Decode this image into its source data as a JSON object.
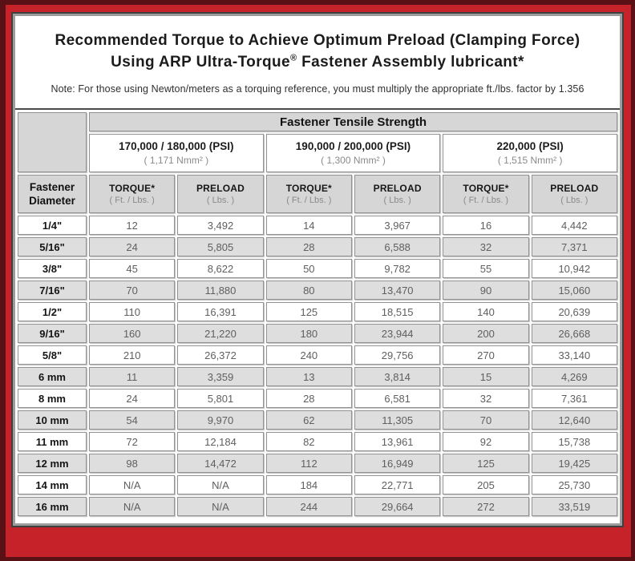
{
  "header": {
    "title_line1": "Recommended Torque to Achieve Optimum Preload (Clamping Force)",
    "title_line2_pre": "Using ARP Ultra-Torque",
    "title_line2_reg": "®",
    "title_line2_post": " Fastener Assembly lubricant*",
    "note": "Note: For those using Newton/meters as a torquing reference, you must multiply the appropriate ft./lbs. factor by 1.356"
  },
  "table": {
    "group_header": "Fastener Tensile Strength",
    "diameter_header": "Fastener Diameter",
    "strength_columns": [
      {
        "psi": "170,000 / 180,000 (PSI)",
        "nmm2": "( 1,171 Nmm² )"
      },
      {
        "psi": "190,000 / 200,000 (PSI)",
        "nmm2": "( 1,300 Nmm² )"
      },
      {
        "psi": "220,000 (PSI)",
        "nmm2": "( 1,515 Nmm² )"
      }
    ],
    "subheaders": {
      "torque_label": "TORQUE*",
      "torque_unit": "( Ft. / Lbs. )",
      "preload_label": "PRELOAD",
      "preload_unit": "( Lbs. )"
    },
    "rows": [
      {
        "diameter": "1/4\"",
        "values": [
          "12",
          "3,492",
          "14",
          "3,967",
          "16",
          "4,442"
        ]
      },
      {
        "diameter": "5/16\"",
        "values": [
          "24",
          "5,805",
          "28",
          "6,588",
          "32",
          "7,371"
        ]
      },
      {
        "diameter": "3/8\"",
        "values": [
          "45",
          "8,622",
          "50",
          "9,782",
          "55",
          "10,942"
        ]
      },
      {
        "diameter": "7/16\"",
        "values": [
          "70",
          "11,880",
          "80",
          "13,470",
          "90",
          "15,060"
        ]
      },
      {
        "diameter": "1/2\"",
        "values": [
          "110",
          "16,391",
          "125",
          "18,515",
          "140",
          "20,639"
        ]
      },
      {
        "diameter": "9/16\"",
        "values": [
          "160",
          "21,220",
          "180",
          "23,944",
          "200",
          "26,668"
        ]
      },
      {
        "diameter": "5/8\"",
        "values": [
          "210",
          "26,372",
          "240",
          "29,756",
          "270",
          "33,140"
        ]
      },
      {
        "diameter": "6 mm",
        "values": [
          "11",
          "3,359",
          "13",
          "3,814",
          "15",
          "4,269"
        ]
      },
      {
        "diameter": "8 mm",
        "values": [
          "24",
          "5,801",
          "28",
          "6,581",
          "32",
          "7,361"
        ]
      },
      {
        "diameter": "10 mm",
        "values": [
          "54",
          "9,970",
          "62",
          "11,305",
          "70",
          "12,640"
        ]
      },
      {
        "diameter": "11 mm",
        "values": [
          "72",
          "12,184",
          "82",
          "13,961",
          "92",
          "15,738"
        ]
      },
      {
        "diameter": "12 mm",
        "values": [
          "98",
          "14,472",
          "112",
          "16,949",
          "125",
          "19,425"
        ]
      },
      {
        "diameter": "14 mm",
        "values": [
          "N/A",
          "N/A",
          "184",
          "22,771",
          "205",
          "25,730"
        ]
      },
      {
        "diameter": "16 mm",
        "values": [
          "N/A",
          "N/A",
          "244",
          "29,664",
          "272",
          "33,519"
        ]
      }
    ]
  },
  "colors": {
    "frame_red": "#c52329",
    "frame_dark_edge": "#5a1115",
    "panel_border_dark": "#3f3f3f",
    "panel_border_gray": "#9c9c9c",
    "cell_border_gray": "#919191",
    "header_cell_gray": "#d6d6d6",
    "shaded_row_gray": "#dedede",
    "data_text_gray": "#5f5f5f"
  }
}
